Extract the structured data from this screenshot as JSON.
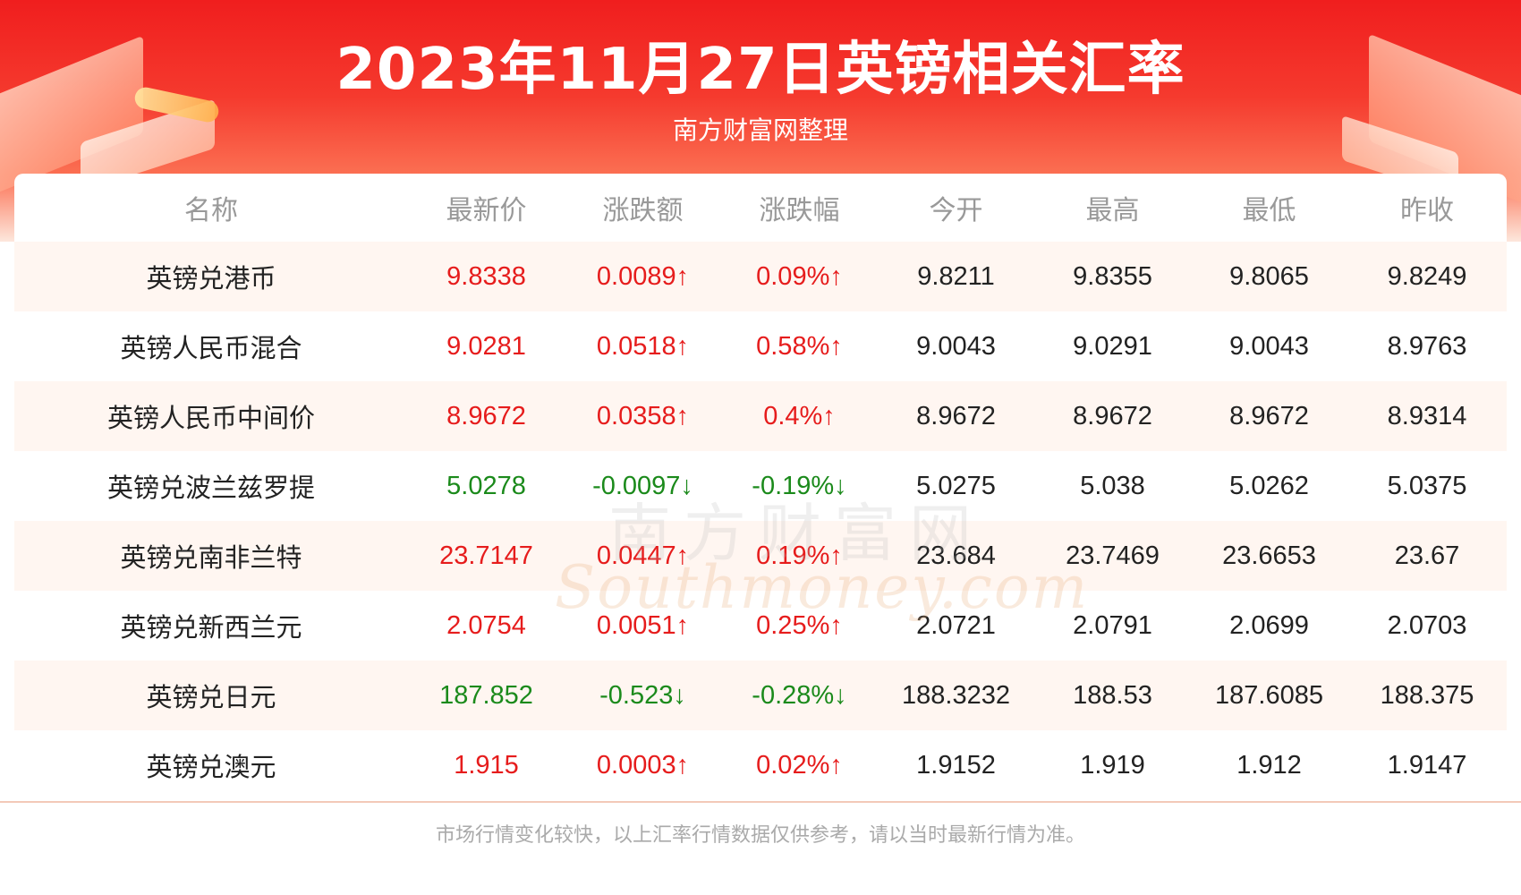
{
  "header": {
    "title": "2023年11月27日英镑相关汇率",
    "subtitle": "南方财富网整理"
  },
  "table": {
    "columns": [
      "名称",
      "最新价",
      "涨跌额",
      "涨跌幅",
      "今开",
      "最高",
      "最低",
      "昨收"
    ],
    "rows": [
      {
        "name": "英镑兑港币",
        "latest": "9.8338",
        "change": "0.0089↑",
        "pct": "0.09%↑",
        "open": "9.8211",
        "high": "9.8355",
        "low": "9.8065",
        "prev": "9.8249",
        "trend": "up"
      },
      {
        "name": "英镑人民币混合",
        "latest": "9.0281",
        "change": "0.0518↑",
        "pct": "0.58%↑",
        "open": "9.0043",
        "high": "9.0291",
        "low": "9.0043",
        "prev": "8.9763",
        "trend": "up"
      },
      {
        "name": "英镑人民币中间价",
        "latest": "8.9672",
        "change": "0.0358↑",
        "pct": "0.4%↑",
        "open": "8.9672",
        "high": "8.9672",
        "low": "8.9672",
        "prev": "8.9314",
        "trend": "up"
      },
      {
        "name": "英镑兑波兰兹罗提",
        "latest": "5.0278",
        "change": "-0.0097↓",
        "pct": "-0.19%↓",
        "open": "5.0275",
        "high": "5.038",
        "low": "5.0262",
        "prev": "5.0375",
        "trend": "down"
      },
      {
        "name": "英镑兑南非兰特",
        "latest": "23.7147",
        "change": "0.0447↑",
        "pct": "0.19%↑",
        "open": "23.684",
        "high": "23.7469",
        "low": "23.6653",
        "prev": "23.67",
        "trend": "up"
      },
      {
        "name": "英镑兑新西兰元",
        "latest": "2.0754",
        "change": "0.0051↑",
        "pct": "0.25%↑",
        "open": "2.0721",
        "high": "2.0791",
        "low": "2.0699",
        "prev": "2.0703",
        "trend": "up"
      },
      {
        "name": "英镑兑日元",
        "latest": "187.852",
        "change": "-0.523↓",
        "pct": "-0.28%↓",
        "open": "188.3232",
        "high": "188.53",
        "low": "187.6085",
        "prev": "188.375",
        "trend": "down"
      },
      {
        "name": "英镑兑澳元",
        "latest": "1.915",
        "change": "0.0003↑",
        "pct": "0.02%↑",
        "open": "1.9152",
        "high": "1.919",
        "low": "1.912",
        "prev": "1.9147",
        "trend": "up"
      }
    ]
  },
  "watermark": {
    "cn": "南方财富网",
    "en": "Southmoney.com"
  },
  "footer": {
    "note": "市场行情变化较快，以上汇率行情数据仅供参考，请以当时最新行情为准。"
  },
  "colors": {
    "up": "#e61c1c",
    "down": "#1b8a1b",
    "header_red": "#f01e1e",
    "alt_row": "#fff6f1"
  }
}
